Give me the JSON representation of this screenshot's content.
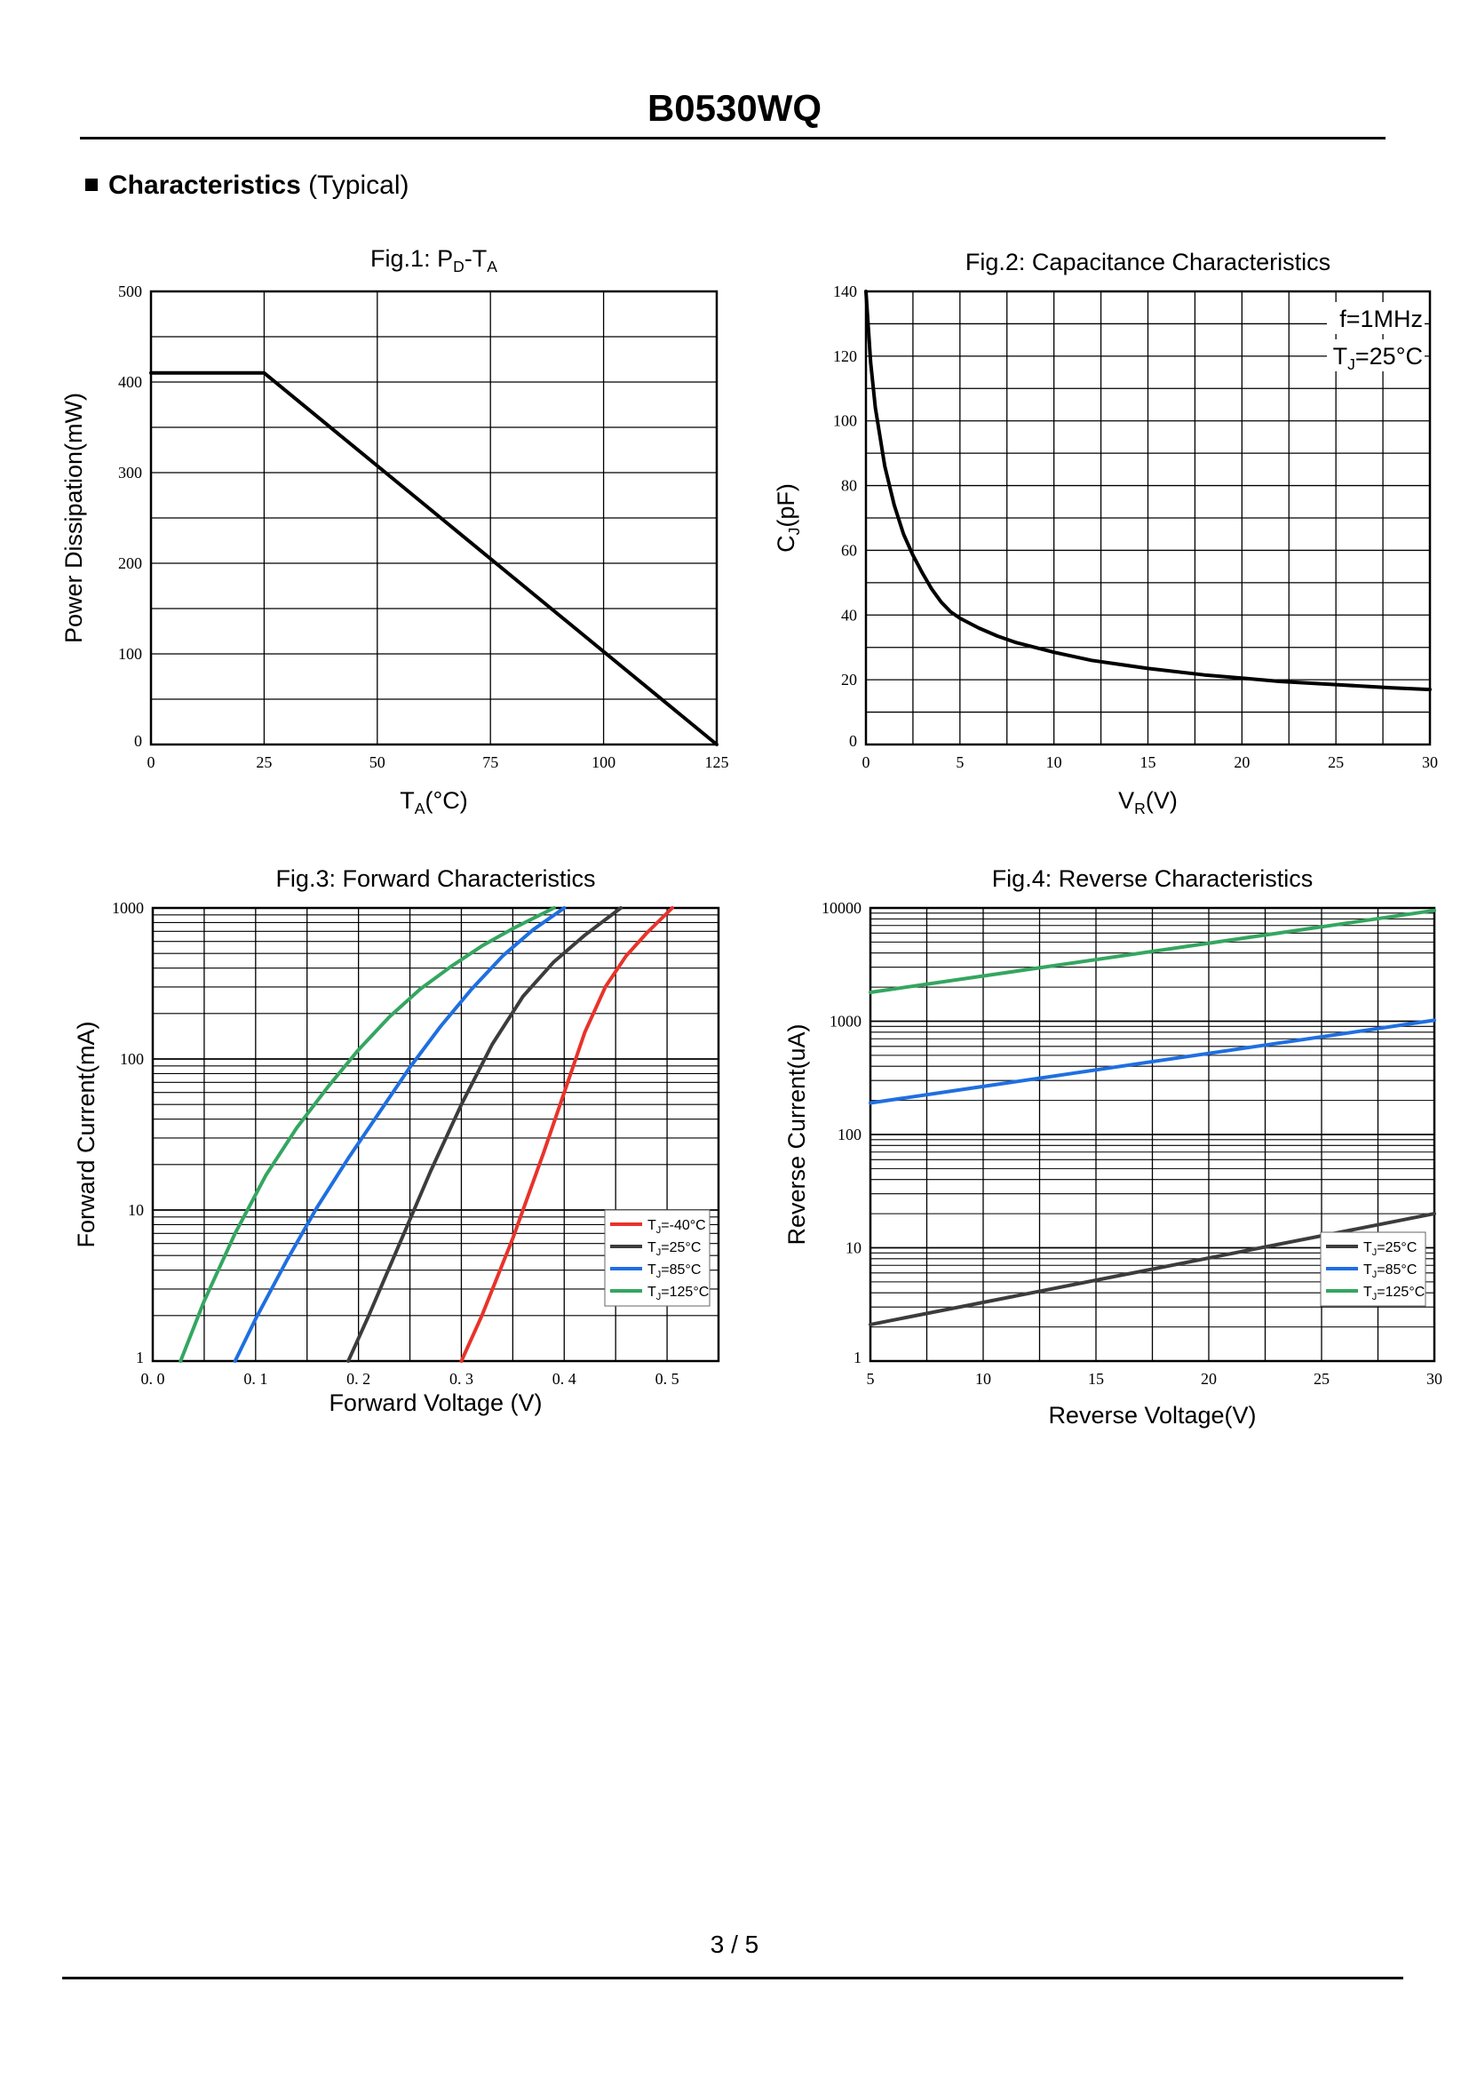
{
  "header": {
    "title": "B0530WQ"
  },
  "section": {
    "label": "Characteristics",
    "qualifier": "(Typical)"
  },
  "footer": {
    "page": "3 / 5"
  },
  "colors": {
    "red": "#e8332a",
    "dark": "#3c3c3c",
    "blue": "#1f6fe0",
    "green": "#34a660",
    "black": "#000000"
  },
  "chart_data": [
    {
      "id": "fig1",
      "type": "line",
      "title": {
        "prefix": "Fig.1: P",
        "sub1": "D",
        "mid": "-T",
        "sub2": "A"
      },
      "xlabel": {
        "main": "T",
        "sub": "A",
        "rest": "(°C)"
      },
      "ylabel": "Power Dissipation(mW)",
      "xlim": [
        0,
        125
      ],
      "ylim": [
        0,
        500
      ],
      "xticks": [
        0,
        25,
        50,
        75,
        100,
        125
      ],
      "yticks": [
        0,
        100,
        200,
        300,
        400,
        500
      ],
      "xgrid": [
        0,
        25,
        50,
        75,
        100,
        125
      ],
      "ygrid": [
        0,
        50,
        100,
        150,
        200,
        250,
        300,
        350,
        400,
        450,
        500
      ],
      "series": [
        {
          "name": "PD",
          "color": "#000000",
          "x": [
            0,
            25,
            125
          ],
          "y": [
            410,
            410,
            0
          ]
        }
      ]
    },
    {
      "id": "fig2",
      "type": "line",
      "title": "Fig.2: Capacitance Characteristics",
      "xlabel": {
        "main": "V",
        "sub": "R",
        "rest": "(V)"
      },
      "ylabel": {
        "main": "C",
        "sub": "J",
        "rest": "(pF)"
      },
      "xlim": [
        0,
        30
      ],
      "ylim": [
        0,
        140
      ],
      "xticks": [
        0,
        5,
        10,
        15,
        20,
        25,
        30
      ],
      "yticks": [
        0,
        20,
        40,
        60,
        80,
        100,
        120,
        140
      ],
      "xgrid": [
        0,
        2.5,
        5,
        7.5,
        10,
        12.5,
        15,
        17.5,
        20,
        22.5,
        25,
        27.5,
        30
      ],
      "ygrid": [
        0,
        10,
        20,
        30,
        40,
        50,
        60,
        70,
        80,
        90,
        100,
        110,
        120,
        130,
        140
      ],
      "annotations": [
        {
          "main": "f=1MHz",
          "sub": "",
          "rest": ""
        },
        {
          "main": "T",
          "sub": "J",
          "rest": "=25°C"
        }
      ],
      "series": [
        {
          "name": "CJ",
          "color": "#000000",
          "x": [
            0,
            0.25,
            0.5,
            1,
            1.5,
            2,
            2.5,
            3,
            3.5,
            4,
            4.5,
            5,
            6,
            7,
            8,
            10,
            12,
            15,
            18,
            20,
            22,
            25,
            28,
            30
          ],
          "y": [
            140,
            118,
            104,
            86,
            74,
            65,
            58.5,
            53,
            48,
            44,
            41,
            39,
            36,
            33.5,
            31.5,
            28.5,
            26,
            23.5,
            21.5,
            20.5,
            19.5,
            18.5,
            17.5,
            17
          ]
        }
      ]
    },
    {
      "id": "fig3",
      "type": "line",
      "title": "Fig.3: Forward Characteristics",
      "xlabel": "Forward Voltage (V)",
      "ylabel": "Forward Current(mA)",
      "yscale": "log",
      "xlim": [
        0,
        0.55
      ],
      "ylim": [
        1,
        1000
      ],
      "xticks": [
        0.0,
        0.1,
        0.2,
        0.3,
        0.4,
        0.5
      ],
      "xtick_labels": [
        "0. 0",
        "0. 1",
        "0. 2",
        "0. 3",
        "0. 4",
        "0. 5"
      ],
      "yticks": [
        1,
        10,
        100,
        1000
      ],
      "yticks_labels": [
        "1",
        "10",
        "100",
        "1000"
      ],
      "xgrid": [
        0,
        0.05,
        0.1,
        0.15,
        0.2,
        0.25,
        0.3,
        0.35,
        0.4,
        0.45,
        0.5,
        0.55
      ],
      "legend": {
        "position": "lower-right"
      },
      "series": [
        {
          "name": "TJ=-40°C",
          "label": {
            "main": "T",
            "sub": "J",
            "rest": "=-40°C"
          },
          "color": "#e8332a",
          "x": [
            0.3,
            0.32,
            0.35,
            0.38,
            0.4,
            0.42,
            0.44,
            0.46,
            0.48,
            0.505
          ],
          "y": [
            1,
            2,
            6.5,
            24,
            60,
            150,
            300,
            480,
            680,
            1000
          ]
        },
        {
          "name": "TJ=25°C",
          "label": {
            "main": "T",
            "sub": "J",
            "rest": "=25°C"
          },
          "color": "#3c3c3c",
          "x": [
            0.19,
            0.21,
            0.24,
            0.27,
            0.3,
            0.33,
            0.36,
            0.39,
            0.42,
            0.455
          ],
          "y": [
            1,
            2,
            6,
            18,
            50,
            125,
            260,
            440,
            660,
            1000
          ]
        },
        {
          "name": "TJ=85°C",
          "label": {
            "main": "T",
            "sub": "J",
            "rest": "=85°C"
          },
          "color": "#1f6fe0",
          "x": [
            0.08,
            0.1,
            0.13,
            0.16,
            0.19,
            0.22,
            0.25,
            0.28,
            0.31,
            0.34,
            0.37,
            0.4
          ],
          "y": [
            1,
            1.9,
            4.6,
            10.5,
            22,
            44,
            88,
            165,
            290,
            480,
            720,
            1000
          ]
        },
        {
          "name": "TJ=125°C",
          "label": {
            "main": "T",
            "sub": "J",
            "rest": "=125°C"
          },
          "color": "#34a660",
          "x": [
            0.027,
            0.05,
            0.08,
            0.11,
            0.14,
            0.17,
            0.2,
            0.23,
            0.26,
            0.29,
            0.32,
            0.35,
            0.39
          ],
          "y": [
            1,
            2.5,
            7,
            17,
            35,
            65,
            115,
            190,
            290,
            410,
            560,
            730,
            1000
          ]
        }
      ]
    },
    {
      "id": "fig4",
      "type": "line",
      "title": "Fig.4: Reverse Characteristics",
      "xlabel": "Reverse Voltage(V)",
      "ylabel": "Reverse Current(uA)",
      "yscale": "log",
      "xlim": [
        5,
        30
      ],
      "ylim": [
        1,
        10000
      ],
      "xticks": [
        5,
        10,
        15,
        20,
        25,
        30
      ],
      "yticks": [
        1,
        10,
        100,
        1000,
        10000
      ],
      "yticks_labels": [
        "1",
        "10",
        "100",
        "1000",
        "10000"
      ],
      "xgrid": [
        5,
        7.5,
        10,
        12.5,
        15,
        17.5,
        20,
        22.5,
        25,
        27.5,
        30
      ],
      "legend": {
        "position": "lower-right"
      },
      "series": [
        {
          "name": "TJ=25°C",
          "label": {
            "main": "T",
            "sub": "J",
            "rest": "=25°C"
          },
          "color": "#3c3c3c",
          "x": [
            5,
            30
          ],
          "y": [
            2.1,
            20
          ]
        },
        {
          "name": "TJ=85°C",
          "label": {
            "main": "T",
            "sub": "J",
            "rest": "=85°C"
          },
          "color": "#1f6fe0",
          "x": [
            5,
            30
          ],
          "y": [
            190,
            1020
          ]
        },
        {
          "name": "TJ=125°C",
          "label": {
            "main": "T",
            "sub": "J",
            "rest": "=125°C"
          },
          "color": "#34a660",
          "x": [
            5,
            30
          ],
          "y": [
            1800,
            9500
          ]
        }
      ]
    }
  ]
}
